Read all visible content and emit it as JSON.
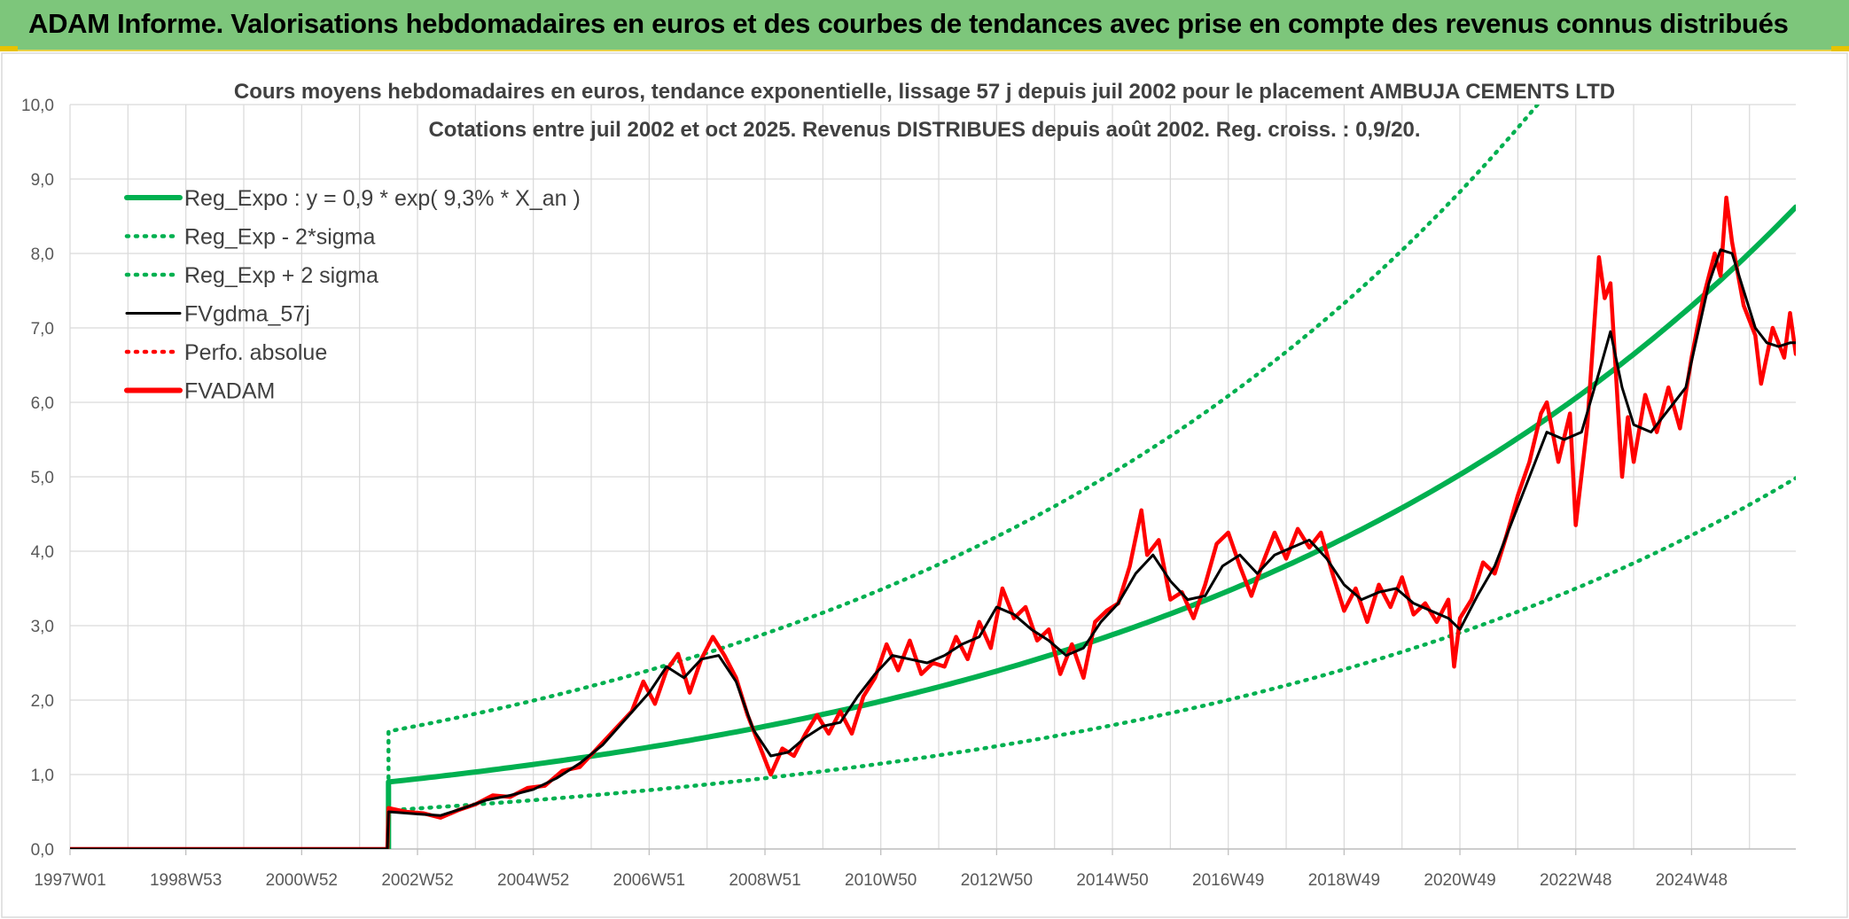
{
  "header": {
    "title": "ADAM Informe. Valorisations hebdomadaires en euros et des courbes de tendances avec prise en compte des revenus connus distribués"
  },
  "chart_data": {
    "type": "line",
    "title_line1": "Cours moyens hebdomadaires en euros, tendance exponentielle, lissage 57 j depuis juil 2002 pour le placement AMBUJA CEMENTS LTD",
    "title_line2": "Cotations entre juil 2002  et oct 2025. Revenus DISTRIBUES depuis août 2002. Reg. croiss. : 0,9/20.",
    "xlabel": "",
    "ylabel": "",
    "xlim": [
      1997.0,
      2025.8
    ],
    "ylim": [
      0,
      10
    ],
    "y_ticks": [
      "0,0",
      "1,0",
      "2,0",
      "3,0",
      "4,0",
      "5,0",
      "6,0",
      "7,0",
      "8,0",
      "9,0",
      "10,0"
    ],
    "x_ticks": [
      {
        "label": "1997W01",
        "x": 1997.0
      },
      {
        "label": "1998W53",
        "x": 1999.0
      },
      {
        "label": "2000W52",
        "x": 2001.0
      },
      {
        "label": "2002W52",
        "x": 2003.0
      },
      {
        "label": "2004W52",
        "x": 2005.0
      },
      {
        "label": "2006W51",
        "x": 2007.0
      },
      {
        "label": "2008W51",
        "x": 2009.0
      },
      {
        "label": "2010W50",
        "x": 2011.0
      },
      {
        "label": "2012W50",
        "x": 2013.0
      },
      {
        "label": "2014W50",
        "x": 2015.0
      },
      {
        "label": "2016W49",
        "x": 2017.0
      },
      {
        "label": "2018W49",
        "x": 2019.0
      },
      {
        "label": "2020W49",
        "x": 2021.0
      },
      {
        "label": "2022W48",
        "x": 2023.0
      },
      {
        "label": "2024W48",
        "x": 2025.0
      }
    ],
    "grid": true,
    "legend_position": "top-left",
    "series": [
      {
        "name": "Reg_Expo : y = 0,9 * exp( 9,3% *  X_an )",
        "style": "solid-thick",
        "color": "#00b050",
        "x_start": 2002.5,
        "a": 0.9,
        "r": 0.093
      },
      {
        "name": "Reg_Exp - 2*sigma",
        "style": "dotted",
        "color": "#00b050",
        "x_start": 2002.5,
        "a": 0.52,
        "r": 0.093
      },
      {
        "name": "Reg_Exp + 2 sigma",
        "style": "dotted",
        "color": "#00b050",
        "x_start": 2002.5,
        "a": 1.58,
        "r": 0.093
      },
      {
        "name": "FVgdma_57j",
        "style": "solid",
        "color": "#000000",
        "points": [
          [
            1997.0,
            0
          ],
          [
            2002.48,
            0
          ],
          [
            2002.5,
            0.5
          ],
          [
            2003.0,
            0.47
          ],
          [
            2003.4,
            0.45
          ],
          [
            2003.8,
            0.55
          ],
          [
            2004.2,
            0.66
          ],
          [
            2004.6,
            0.72
          ],
          [
            2005.0,
            0.8
          ],
          [
            2005.4,
            0.95
          ],
          [
            2005.8,
            1.15
          ],
          [
            2006.2,
            1.4
          ],
          [
            2006.6,
            1.75
          ],
          [
            2007.0,
            2.1
          ],
          [
            2007.3,
            2.45
          ],
          [
            2007.6,
            2.3
          ],
          [
            2007.9,
            2.55
          ],
          [
            2008.2,
            2.6
          ],
          [
            2008.5,
            2.25
          ],
          [
            2008.8,
            1.6
          ],
          [
            2009.1,
            1.25
          ],
          [
            2009.4,
            1.3
          ],
          [
            2009.7,
            1.5
          ],
          [
            2010.0,
            1.65
          ],
          [
            2010.3,
            1.7
          ],
          [
            2010.6,
            2.05
          ],
          [
            2010.9,
            2.35
          ],
          [
            2011.2,
            2.6
          ],
          [
            2011.5,
            2.55
          ],
          [
            2011.8,
            2.5
          ],
          [
            2012.1,
            2.6
          ],
          [
            2012.4,
            2.75
          ],
          [
            2012.7,
            2.85
          ],
          [
            2013.0,
            3.25
          ],
          [
            2013.3,
            3.15
          ],
          [
            2013.6,
            2.95
          ],
          [
            2013.9,
            2.8
          ],
          [
            2014.2,
            2.6
          ],
          [
            2014.5,
            2.7
          ],
          [
            2014.8,
            3.05
          ],
          [
            2015.1,
            3.3
          ],
          [
            2015.4,
            3.7
          ],
          [
            2015.7,
            3.95
          ],
          [
            2016.0,
            3.6
          ],
          [
            2016.3,
            3.35
          ],
          [
            2016.6,
            3.4
          ],
          [
            2016.9,
            3.8
          ],
          [
            2017.2,
            3.95
          ],
          [
            2017.5,
            3.7
          ],
          [
            2017.8,
            3.95
          ],
          [
            2018.1,
            4.05
          ],
          [
            2018.4,
            4.15
          ],
          [
            2018.7,
            3.9
          ],
          [
            2019.0,
            3.55
          ],
          [
            2019.3,
            3.35
          ],
          [
            2019.6,
            3.45
          ],
          [
            2019.9,
            3.5
          ],
          [
            2020.2,
            3.3
          ],
          [
            2020.5,
            3.2
          ],
          [
            2020.8,
            3.1
          ],
          [
            2021.0,
            2.95
          ],
          [
            2021.3,
            3.4
          ],
          [
            2021.6,
            3.8
          ],
          [
            2021.9,
            4.4
          ],
          [
            2022.2,
            5.0
          ],
          [
            2022.5,
            5.6
          ],
          [
            2022.8,
            5.5
          ],
          [
            2023.1,
            5.6
          ],
          [
            2023.4,
            6.4
          ],
          [
            2023.6,
            6.95
          ],
          [
            2023.8,
            6.2
          ],
          [
            2024.0,
            5.7
          ],
          [
            2024.3,
            5.6
          ],
          [
            2024.6,
            5.9
          ],
          [
            2024.9,
            6.2
          ],
          [
            2025.1,
            6.9
          ],
          [
            2025.3,
            7.6
          ],
          [
            2025.5,
            8.05
          ],
          [
            2025.7,
            8.0
          ],
          [
            2025.9,
            7.5
          ],
          [
            2026.1,
            7.0
          ],
          [
            2026.3,
            6.8
          ],
          [
            2026.5,
            6.75
          ],
          [
            2026.7,
            6.8
          ],
          [
            2026.8,
            6.8
          ]
        ]
      },
      {
        "name": "Perfo. absolue",
        "style": "dotted",
        "color": "#ff0000",
        "points": []
      },
      {
        "name": "FVADAM",
        "style": "solid-thick",
        "color": "#ff0000",
        "points": [
          [
            1997.0,
            0
          ],
          [
            2002.48,
            0
          ],
          [
            2002.5,
            0.55
          ],
          [
            2002.8,
            0.5
          ],
          [
            2003.1,
            0.48
          ],
          [
            2003.4,
            0.42
          ],
          [
            2003.7,
            0.52
          ],
          [
            2004.0,
            0.6
          ],
          [
            2004.3,
            0.72
          ],
          [
            2004.6,
            0.7
          ],
          [
            2004.9,
            0.82
          ],
          [
            2005.2,
            0.85
          ],
          [
            2005.5,
            1.05
          ],
          [
            2005.8,
            1.1
          ],
          [
            2006.1,
            1.35
          ],
          [
            2006.4,
            1.6
          ],
          [
            2006.7,
            1.85
          ],
          [
            2006.9,
            2.25
          ],
          [
            2007.1,
            1.95
          ],
          [
            2007.3,
            2.4
          ],
          [
            2007.5,
            2.62
          ],
          [
            2007.7,
            2.1
          ],
          [
            2007.9,
            2.55
          ],
          [
            2008.1,
            2.85
          ],
          [
            2008.3,
            2.6
          ],
          [
            2008.5,
            2.3
          ],
          [
            2008.7,
            1.8
          ],
          [
            2008.9,
            1.4
          ],
          [
            2009.1,
            1.0
          ],
          [
            2009.3,
            1.35
          ],
          [
            2009.5,
            1.25
          ],
          [
            2009.7,
            1.55
          ],
          [
            2009.9,
            1.8
          ],
          [
            2010.1,
            1.55
          ],
          [
            2010.3,
            1.85
          ],
          [
            2010.5,
            1.55
          ],
          [
            2010.7,
            2.05
          ],
          [
            2010.9,
            2.3
          ],
          [
            2011.1,
            2.75
          ],
          [
            2011.3,
            2.4
          ],
          [
            2011.5,
            2.8
          ],
          [
            2011.7,
            2.35
          ],
          [
            2011.9,
            2.5
          ],
          [
            2012.1,
            2.45
          ],
          [
            2012.3,
            2.85
          ],
          [
            2012.5,
            2.55
          ],
          [
            2012.7,
            3.05
          ],
          [
            2012.9,
            2.7
          ],
          [
            2013.1,
            3.5
          ],
          [
            2013.3,
            3.1
          ],
          [
            2013.5,
            3.25
          ],
          [
            2013.7,
            2.8
          ],
          [
            2013.9,
            2.95
          ],
          [
            2014.1,
            2.35
          ],
          [
            2014.3,
            2.75
          ],
          [
            2014.5,
            2.3
          ],
          [
            2014.7,
            3.05
          ],
          [
            2014.9,
            3.2
          ],
          [
            2015.1,
            3.3
          ],
          [
            2015.3,
            3.8
          ],
          [
            2015.5,
            4.55
          ],
          [
            2015.6,
            3.95
          ],
          [
            2015.8,
            4.15
          ],
          [
            2016.0,
            3.35
          ],
          [
            2016.2,
            3.45
          ],
          [
            2016.4,
            3.1
          ],
          [
            2016.6,
            3.55
          ],
          [
            2016.8,
            4.1
          ],
          [
            2017.0,
            4.25
          ],
          [
            2017.2,
            3.8
          ],
          [
            2017.4,
            3.4
          ],
          [
            2017.6,
            3.85
          ],
          [
            2017.8,
            4.25
          ],
          [
            2018.0,
            3.9
          ],
          [
            2018.2,
            4.3
          ],
          [
            2018.4,
            4.05
          ],
          [
            2018.6,
            4.25
          ],
          [
            2018.8,
            3.7
          ],
          [
            2019.0,
            3.2
          ],
          [
            2019.2,
            3.5
          ],
          [
            2019.4,
            3.05
          ],
          [
            2019.6,
            3.55
          ],
          [
            2019.8,
            3.25
          ],
          [
            2020.0,
            3.65
          ],
          [
            2020.2,
            3.15
          ],
          [
            2020.4,
            3.3
          ],
          [
            2020.6,
            3.05
          ],
          [
            2020.8,
            3.35
          ],
          [
            2020.9,
            2.45
          ],
          [
            2021.0,
            3.1
          ],
          [
            2021.2,
            3.35
          ],
          [
            2021.4,
            3.85
          ],
          [
            2021.6,
            3.7
          ],
          [
            2021.8,
            4.2
          ],
          [
            2022.0,
            4.75
          ],
          [
            2022.2,
            5.2
          ],
          [
            2022.4,
            5.85
          ],
          [
            2022.5,
            6.0
          ],
          [
            2022.7,
            5.2
          ],
          [
            2022.9,
            5.85
          ],
          [
            2023.0,
            4.35
          ],
          [
            2023.2,
            5.7
          ],
          [
            2023.4,
            7.95
          ],
          [
            2023.5,
            7.4
          ],
          [
            2023.6,
            7.6
          ],
          [
            2023.7,
            6.3
          ],
          [
            2023.8,
            5.0
          ],
          [
            2023.9,
            5.8
          ],
          [
            2024.0,
            5.2
          ],
          [
            2024.2,
            6.1
          ],
          [
            2024.4,
            5.6
          ],
          [
            2024.6,
            6.2
          ],
          [
            2024.8,
            5.65
          ],
          [
            2025.0,
            6.6
          ],
          [
            2025.2,
            7.4
          ],
          [
            2025.4,
            8.0
          ],
          [
            2025.5,
            7.7
          ],
          [
            2025.6,
            8.75
          ],
          [
            2025.7,
            8.15
          ],
          [
            2025.9,
            7.3
          ],
          [
            2026.1,
            6.9
          ],
          [
            2026.2,
            6.25
          ],
          [
            2026.4,
            7.0
          ],
          [
            2026.6,
            6.6
          ],
          [
            2026.7,
            7.2
          ],
          [
            2026.8,
            6.65
          ]
        ]
      }
    ]
  }
}
